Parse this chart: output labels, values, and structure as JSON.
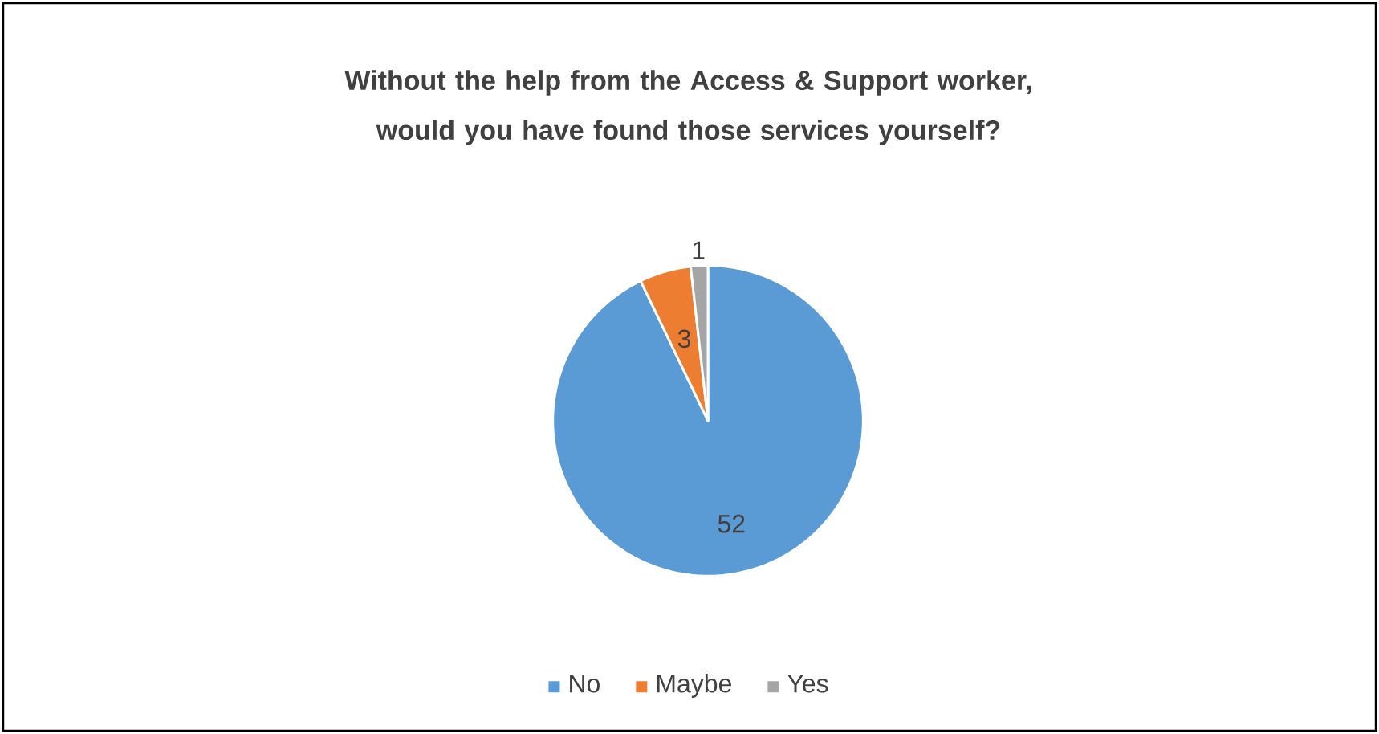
{
  "chart_data": {
    "type": "pie",
    "title": "Without the help from the Access & Support worker, would you have found those services yourself?",
    "categories": [
      "No",
      "Maybe",
      "Yes"
    ],
    "values": [
      52,
      3,
      1
    ],
    "colors": [
      "#5b9bd5",
      "#ed7d31",
      "#a5a5a5"
    ],
    "data_labels": true,
    "legend": "bottom"
  }
}
